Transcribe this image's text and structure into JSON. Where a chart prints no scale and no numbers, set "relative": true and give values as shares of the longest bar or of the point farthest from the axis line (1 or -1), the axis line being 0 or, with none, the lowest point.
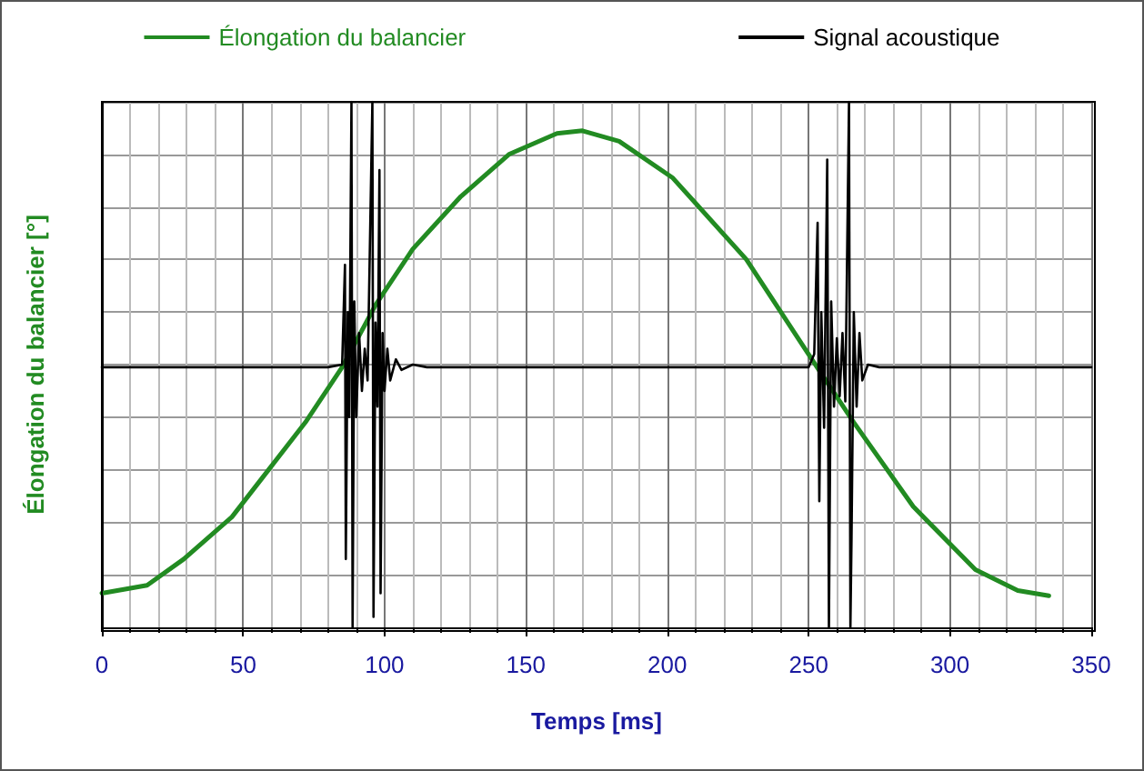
{
  "chart_data": {
    "type": "line",
    "xlabel": "Temps [ms]",
    "ylabel": "Élongation du balancier [°]",
    "relative": true,
    "xlim": [
      0,
      350
    ],
    "xticks": [
      0,
      50,
      100,
      150,
      200,
      250,
      300,
      350
    ],
    "grid": true,
    "legend": "top",
    "marker": "none",
    "line_style": "solid",
    "series": [
      {
        "name": "Élongation du balancier",
        "color": "#228b22",
        "x": [
          0,
          16,
          29,
          46,
          59,
          72,
          85,
          97,
          110,
          127,
          144,
          161,
          170,
          183,
          202,
          228,
          253,
          266,
          287,
          309,
          324,
          335
        ],
        "values": [
          0.065,
          0.08,
          0.13,
          0.21,
          0.3,
          0.39,
          0.495,
          0.615,
          0.72,
          0.82,
          0.9,
          0.94,
          0.945,
          0.925,
          0.855,
          0.7,
          0.495,
          0.39,
          0.23,
          0.11,
          0.07,
          0.06
        ]
      },
      {
        "name": "Signal acoustique",
        "color": "#000000",
        "x": [
          0,
          80,
          85,
          86,
          86.3,
          87,
          87.5,
          88.3,
          88.7,
          89.3,
          90,
          91,
          92,
          93,
          94,
          95.7,
          96.1,
          96.8,
          97.5,
          98.2,
          98.6,
          99.3,
          100,
          101,
          102,
          104,
          106,
          110,
          115,
          250,
          252,
          253.2,
          253.8,
          254.5,
          255.5,
          256.6,
          257.2,
          258,
          259,
          260,
          261,
          262,
          263,
          264.3,
          264.8,
          265.2,
          266,
          267,
          268,
          269,
          271,
          275,
          350
        ],
        "values": [
          0.495,
          0.495,
          0.5,
          0.69,
          0.13,
          0.6,
          0.4,
          1,
          0,
          0.62,
          0.4,
          0.56,
          0.45,
          0.53,
          0.47,
          1,
          0.02,
          0.58,
          0.42,
          0.87,
          0.065,
          0.56,
          0.45,
          0.53,
          0.47,
          0.51,
          0.49,
          0.5,
          0.495,
          0.495,
          0.52,
          0.77,
          0.24,
          0.6,
          0.38,
          0.89,
          0,
          0.62,
          0.42,
          0.55,
          0.44,
          0.56,
          0.43,
          1,
          0,
          0.17,
          0.6,
          0.42,
          0.56,
          0.47,
          0.5,
          0.495,
          0.495
        ]
      }
    ]
  }
}
